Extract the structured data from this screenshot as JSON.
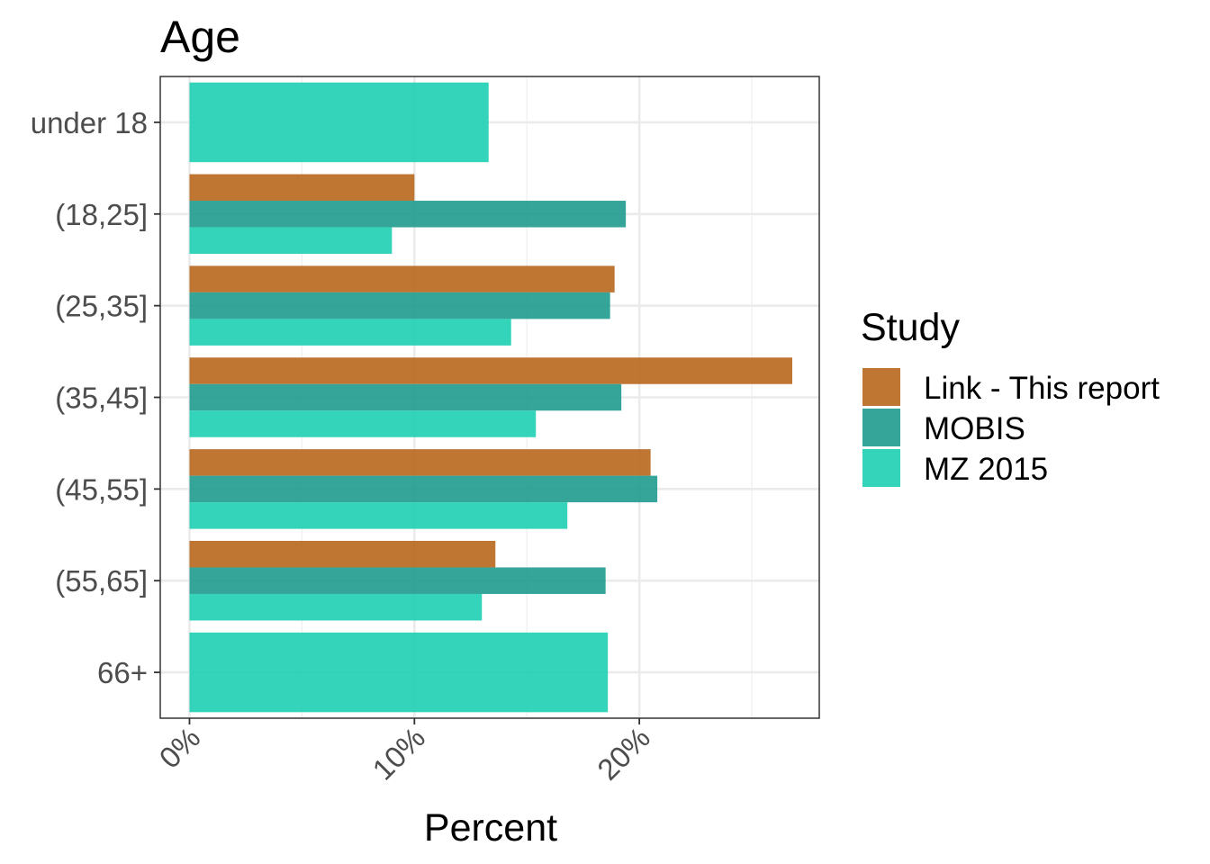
{
  "chart_data": {
    "type": "bar",
    "orientation": "horizontal",
    "title": "Age",
    "xlabel": "Percent",
    "ylabel": "",
    "xlim": [
      -1.3,
      28.0
    ],
    "x_ticks": [
      0,
      10,
      20
    ],
    "x_tick_labels": [
      "0%",
      "10%",
      "20%"
    ],
    "x_minor_gridlines": [
      5,
      15,
      25
    ],
    "grid": true,
    "categories": [
      "under 18",
      "(18,25]",
      "(25,35]",
      "(35,45]",
      "(45,55]",
      "(55,65]",
      "66+"
    ],
    "series": [
      {
        "name": "Link - This report",
        "color": "#b8671c",
        "values": [
          null,
          10.0,
          18.9,
          26.8,
          20.5,
          13.6,
          null
        ]
      },
      {
        "name": "MOBIS",
        "color": "#1f9b8f",
        "values": [
          null,
          19.4,
          18.7,
          19.2,
          20.8,
          18.5,
          null
        ]
      },
      {
        "name": "MZ 2015",
        "color": "#1dcfb3",
        "values": [
          13.3,
          9.0,
          14.3,
          15.4,
          16.8,
          13.0,
          18.6
        ]
      }
    ],
    "legend": {
      "title": "Study",
      "position": "right"
    }
  }
}
